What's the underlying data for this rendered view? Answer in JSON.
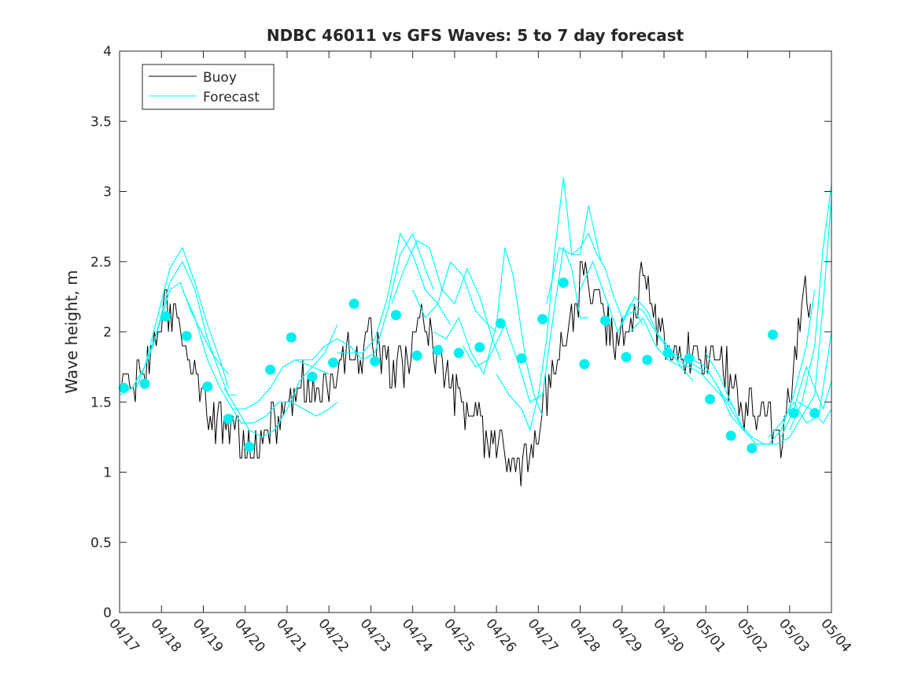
{
  "chart_data": {
    "type": "line",
    "title": "NDBC 46011 vs GFS Waves: 5 to 7 day forecast",
    "xlabel": "",
    "ylabel": "Wave height, m",
    "xlim": [
      0,
      17
    ],
    "ylim": [
      0,
      4
    ],
    "x_tick_labels": [
      "04/17",
      "04/18",
      "04/19",
      "04/20",
      "04/21",
      "04/22",
      "04/23",
      "04/24",
      "04/25",
      "04/26",
      "04/27",
      "04/28",
      "04/29",
      "04/30",
      "05/01",
      "05/02",
      "05/03",
      "05/04"
    ],
    "y_ticks": [
      0,
      0.5,
      1,
      1.5,
      2,
      2.5,
      3,
      3.5,
      4
    ],
    "y_tick_labels": [
      "0",
      "0.5",
      "1",
      "1.5",
      "2",
      "2.5",
      "3",
      "3.5",
      "4"
    ],
    "legend": {
      "position": "top-left",
      "entries": [
        {
          "label": "Buoy",
          "color": "#000000"
        },
        {
          "label": "Forecast",
          "color": "#00ffff"
        }
      ]
    },
    "colors": {
      "buoy": "#000000",
      "forecast": "#00ffff",
      "markers": "#00f0f0"
    },
    "buoy_anchors": [
      [
        0.0,
        1.6
      ],
      [
        0.2,
        1.6
      ],
      [
        0.4,
        1.65
      ],
      [
        0.6,
        1.7
      ],
      [
        0.8,
        1.9
      ],
      [
        0.95,
        2.1
      ],
      [
        1.1,
        2.2
      ],
      [
        1.25,
        2.15
      ],
      [
        1.4,
        2.05
      ],
      [
        1.55,
        1.95
      ],
      [
        1.7,
        1.8
      ],
      [
        1.85,
        1.6
      ],
      [
        2.0,
        1.55
      ],
      [
        2.15,
        1.4
      ],
      [
        2.3,
        1.35
      ],
      [
        2.5,
        1.3
      ],
      [
        2.7,
        1.3
      ],
      [
        2.9,
        1.2
      ],
      [
        3.1,
        1.15
      ],
      [
        3.3,
        1.2
      ],
      [
        3.5,
        1.3
      ],
      [
        3.7,
        1.35
      ],
      [
        3.9,
        1.4
      ],
      [
        4.1,
        1.5
      ],
      [
        4.3,
        1.6
      ],
      [
        4.5,
        1.6
      ],
      [
        4.7,
        1.55
      ],
      [
        4.9,
        1.6
      ],
      [
        5.1,
        1.7
      ],
      [
        5.3,
        1.8
      ],
      [
        5.5,
        1.85
      ],
      [
        5.7,
        1.8
      ],
      [
        5.9,
        1.85
      ],
      [
        6.0,
        2.0
      ],
      [
        6.15,
        1.9
      ],
      [
        6.3,
        1.75
      ],
      [
        6.5,
        1.7
      ],
      [
        6.7,
        1.75
      ],
      [
        6.9,
        1.85
      ],
      [
        7.0,
        1.95
      ],
      [
        7.2,
        2.05
      ],
      [
        7.4,
        2.0
      ],
      [
        7.55,
        1.85
      ],
      [
        7.7,
        1.75
      ],
      [
        7.85,
        1.65
      ],
      [
        8.0,
        1.55
      ],
      [
        8.2,
        1.45
      ],
      [
        8.4,
        1.4
      ],
      [
        8.6,
        1.3
      ],
      [
        8.8,
        1.25
      ],
      [
        9.0,
        1.15
      ],
      [
        9.2,
        1.1
      ],
      [
        9.4,
        1.05
      ],
      [
        9.6,
        1.05
      ],
      [
        9.8,
        1.1
      ],
      [
        10.0,
        1.3
      ],
      [
        10.2,
        1.55
      ],
      [
        10.4,
        1.8
      ],
      [
        10.6,
        2.0
      ],
      [
        10.8,
        2.05
      ],
      [
        11.0,
        2.3
      ],
      [
        11.15,
        2.5
      ],
      [
        11.3,
        2.3
      ],
      [
        11.5,
        2.1
      ],
      [
        11.7,
        2.0
      ],
      [
        11.9,
        1.95
      ],
      [
        12.1,
        2.05
      ],
      [
        12.3,
        2.2
      ],
      [
        12.5,
        2.45
      ],
      [
        12.7,
        2.2
      ],
      [
        12.9,
        2.0
      ],
      [
        13.1,
        1.85
      ],
      [
        13.3,
        1.8
      ],
      [
        13.5,
        1.85
      ],
      [
        13.7,
        1.9
      ],
      [
        13.9,
        1.85
      ],
      [
        14.1,
        1.8
      ],
      [
        14.3,
        1.75
      ],
      [
        14.5,
        1.7
      ],
      [
        14.7,
        1.6
      ],
      [
        14.9,
        1.5
      ],
      [
        15.1,
        1.45
      ],
      [
        15.3,
        1.4
      ],
      [
        15.5,
        1.35
      ],
      [
        15.7,
        1.25
      ],
      [
        15.9,
        1.3
      ],
      [
        16.0,
        1.6
      ],
      [
        16.2,
        2.0
      ],
      [
        16.35,
        2.3
      ],
      [
        16.5,
        2.2
      ]
    ],
    "forecast_lines": [
      [
        [
          0.0,
          1.55
        ],
        [
          0.3,
          1.6
        ],
        [
          0.6,
          1.75
        ],
        [
          0.9,
          2.0
        ],
        [
          1.2,
          2.3
        ],
        [
          1.45,
          2.35
        ],
        [
          1.7,
          2.15
        ],
        [
          1.95,
          2.0
        ],
        [
          2.2,
          1.85
        ],
        [
          2.45,
          1.75
        ],
        [
          2.6,
          1.7
        ]
      ],
      [
        [
          0.3,
          1.6
        ],
        [
          0.6,
          1.75
        ],
        [
          0.9,
          2.1
        ],
        [
          1.2,
          2.45
        ],
        [
          1.5,
          2.6
        ],
        [
          1.8,
          2.35
        ],
        [
          2.1,
          2.05
        ],
        [
          2.4,
          1.8
        ],
        [
          2.6,
          1.6
        ]
      ],
      [
        [
          0.4,
          1.6
        ],
        [
          0.8,
          1.9
        ],
        [
          1.2,
          2.35
        ],
        [
          1.5,
          2.5
        ],
        [
          1.8,
          2.3
        ],
        [
          2.1,
          1.95
        ],
        [
          2.4,
          1.7
        ],
        [
          2.6,
          1.55
        ],
        [
          2.8,
          1.55
        ]
      ],
      [
        [
          1.5,
          2.3
        ],
        [
          1.8,
          2.1
        ],
        [
          2.1,
          1.8
        ],
        [
          2.4,
          1.6
        ],
        [
          2.7,
          1.45
        ],
        [
          3.0,
          1.45
        ],
        [
          3.3,
          1.5
        ],
        [
          3.6,
          1.6
        ],
        [
          3.9,
          1.75
        ],
        [
          4.2,
          1.8
        ],
        [
          4.6,
          1.75
        ],
        [
          5.0,
          1.7
        ]
      ],
      [
        [
          2.5,
          1.6
        ],
        [
          2.8,
          1.45
        ],
        [
          3.1,
          1.3
        ],
        [
          3.4,
          1.25
        ],
        [
          3.7,
          1.3
        ],
        [
          4.0,
          1.45
        ],
        [
          4.3,
          1.65
        ],
        [
          4.6,
          1.75
        ],
        [
          4.9,
          1.85
        ],
        [
          5.2,
          2.05
        ]
      ],
      [
        [
          2.6,
          1.5
        ],
        [
          2.9,
          1.35
        ],
        [
          3.2,
          1.35
        ],
        [
          3.5,
          1.4
        ],
        [
          3.8,
          1.5
        ],
        [
          4.1,
          1.5
        ],
        [
          4.4,
          1.45
        ],
        [
          4.7,
          1.4
        ],
        [
          5.0,
          1.45
        ],
        [
          5.2,
          1.5
        ]
      ],
      [
        [
          4.2,
          1.8
        ],
        [
          4.6,
          1.8
        ],
        [
          4.9,
          1.9
        ],
        [
          5.2,
          1.95
        ],
        [
          5.5,
          1.9
        ],
        [
          5.8,
          1.8
        ],
        [
          6.1,
          1.85
        ],
        [
          6.4,
          2.15
        ],
        [
          6.7,
          2.55
        ],
        [
          7.0,
          2.7
        ],
        [
          7.3,
          2.45
        ],
        [
          7.5,
          2.3
        ]
      ],
      [
        [
          5.2,
          1.85
        ],
        [
          5.5,
          1.85
        ],
        [
          5.8,
          1.85
        ],
        [
          6.1,
          1.95
        ],
        [
          6.4,
          2.25
        ],
        [
          6.7,
          2.7
        ],
        [
          7.0,
          2.55
        ],
        [
          7.3,
          2.3
        ],
        [
          7.6,
          2.2
        ],
        [
          7.9,
          2.05
        ]
      ],
      [
        [
          6.5,
          2.2
        ],
        [
          6.8,
          2.45
        ],
        [
          7.1,
          2.65
        ],
        [
          7.4,
          2.6
        ],
        [
          7.7,
          2.3
        ],
        [
          8.0,
          2.2
        ],
        [
          8.3,
          2.45
        ],
        [
          8.6,
          2.25
        ],
        [
          8.9,
          1.95
        ],
        [
          9.1,
          1.8
        ]
      ],
      [
        [
          7.0,
          2.3
        ],
        [
          7.3,
          2.1
        ],
        [
          7.6,
          2.2
        ],
        [
          7.9,
          2.5
        ],
        [
          8.2,
          2.4
        ],
        [
          8.5,
          2.15
        ],
        [
          8.8,
          2.05
        ],
        [
          9.0,
          2.0
        ]
      ],
      [
        [
          7.5,
          2.0
        ],
        [
          7.8,
          1.95
        ],
        [
          8.1,
          2.1
        ],
        [
          8.4,
          1.85
        ],
        [
          8.7,
          1.7
        ],
        [
          9.0,
          2.05
        ],
        [
          9.2,
          2.6
        ],
        [
          9.4,
          2.4
        ],
        [
          9.7,
          1.8
        ],
        [
          9.9,
          1.55
        ],
        [
          10.1,
          1.4
        ]
      ],
      [
        [
          8.2,
          1.9
        ],
        [
          8.5,
          1.75
        ],
        [
          8.8,
          1.8
        ],
        [
          9.2,
          2.05
        ],
        [
          9.5,
          1.8
        ],
        [
          9.8,
          1.5
        ],
        [
          10.1,
          1.55
        ],
        [
          10.4,
          2.2
        ],
        [
          10.6,
          2.6
        ],
        [
          10.8,
          2.45
        ],
        [
          11.0,
          2.1
        ],
        [
          11.2,
          2.1
        ]
      ],
      [
        [
          9.0,
          1.7
        ],
        [
          9.3,
          1.55
        ],
        [
          9.6,
          1.45
        ],
        [
          9.8,
          1.3
        ],
        [
          10.0,
          1.55
        ],
        [
          10.2,
          1.95
        ],
        [
          10.4,
          2.6
        ],
        [
          10.6,
          3.1
        ],
        [
          10.8,
          2.55
        ],
        [
          11.0,
          2.55
        ],
        [
          11.2,
          2.9
        ],
        [
          11.5,
          2.5
        ]
      ],
      [
        [
          10.2,
          2.2
        ],
        [
          10.5,
          2.6
        ],
        [
          10.8,
          2.55
        ],
        [
          11.0,
          2.6
        ],
        [
          11.2,
          2.7
        ],
        [
          11.4,
          2.55
        ],
        [
          11.6,
          2.45
        ],
        [
          11.8,
          2.25
        ],
        [
          12.0,
          2.1
        ],
        [
          12.3,
          2.15
        ],
        [
          12.5,
          2.05
        ]
      ],
      [
        [
          11.0,
          2.3
        ],
        [
          11.3,
          2.5
        ],
        [
          11.6,
          2.25
        ],
        [
          11.9,
          2.0
        ],
        [
          12.2,
          2.2
        ],
        [
          12.5,
          2.15
        ],
        [
          12.8,
          2.0
        ],
        [
          13.1,
          1.9
        ],
        [
          13.4,
          1.75
        ],
        [
          13.7,
          1.65
        ]
      ],
      [
        [
          12.0,
          2.05
        ],
        [
          12.3,
          2.25
        ],
        [
          12.6,
          2.15
        ],
        [
          12.9,
          1.95
        ],
        [
          13.2,
          1.85
        ],
        [
          13.5,
          1.8
        ],
        [
          13.8,
          1.75
        ],
        [
          14.1,
          1.7
        ],
        [
          14.4,
          1.55
        ],
        [
          14.7,
          1.45
        ]
      ],
      [
        [
          12.2,
          2.0
        ],
        [
          12.5,
          2.1
        ],
        [
          12.8,
          1.9
        ],
        [
          13.1,
          1.8
        ],
        [
          13.4,
          1.75
        ],
        [
          13.7,
          1.8
        ],
        [
          14.0,
          1.75
        ],
        [
          14.3,
          1.6
        ],
        [
          14.6,
          1.4
        ],
        [
          14.9,
          1.3
        ],
        [
          15.2,
          1.2
        ],
        [
          15.6,
          1.2
        ]
      ],
      [
        [
          13.0,
          1.9
        ],
        [
          13.3,
          1.8
        ],
        [
          13.6,
          1.75
        ],
        [
          13.9,
          1.7
        ],
        [
          14.2,
          1.6
        ],
        [
          14.5,
          1.5
        ],
        [
          14.8,
          1.35
        ],
        [
          15.1,
          1.25
        ],
        [
          15.4,
          1.2
        ],
        [
          15.7,
          1.2
        ],
        [
          16.0,
          1.25
        ],
        [
          16.3,
          1.4
        ]
      ],
      [
        [
          14.0,
          1.85
        ],
        [
          14.3,
          1.7
        ],
        [
          14.6,
          1.5
        ],
        [
          14.9,
          1.3
        ],
        [
          15.2,
          1.2
        ],
        [
          15.5,
          1.2
        ],
        [
          15.8,
          1.3
        ],
        [
          16.1,
          1.55
        ],
        [
          16.4,
          1.9
        ],
        [
          16.6,
          2.3
        ]
      ],
      [
        [
          15.5,
          1.25
        ],
        [
          15.8,
          1.35
        ],
        [
          16.1,
          1.5
        ],
        [
          16.4,
          1.35
        ],
        [
          16.7,
          1.4
        ],
        [
          16.9,
          1.8
        ],
        [
          17.0,
          2.0
        ]
      ],
      [
        [
          15.8,
          1.25
        ],
        [
          16.1,
          1.45
        ],
        [
          16.4,
          1.75
        ],
        [
          16.6,
          1.6
        ],
        [
          16.8,
          1.45
        ],
        [
          17.0,
          1.65
        ]
      ],
      [
        [
          16.2,
          1.5
        ],
        [
          16.5,
          1.45
        ],
        [
          16.8,
          1.35
        ],
        [
          17.0,
          1.45
        ]
      ],
      [
        [
          16.0,
          1.3
        ],
        [
          16.3,
          1.5
        ],
        [
          16.6,
          1.9
        ],
        [
          16.8,
          2.6
        ],
        [
          17.0,
          3.05
        ]
      ],
      [
        [
          16.3,
          1.4
        ],
        [
          16.6,
          1.55
        ],
        [
          16.8,
          2.2
        ],
        [
          17.0,
          2.95
        ]
      ]
    ],
    "forecast_points": {
      "x": [
        0.1,
        0.6,
        1.1,
        1.6,
        2.1,
        2.6,
        3.1,
        3.6,
        4.1,
        4.6,
        5.1,
        5.6,
        6.1,
        6.6,
        7.1,
        7.6,
        8.1,
        8.6,
        9.1,
        9.6,
        10.1,
        10.6,
        11.1,
        11.6,
        12.1,
        12.6,
        13.1,
        13.6,
        14.1,
        14.6,
        15.1,
        15.6,
        16.1,
        16.6
      ],
      "y": [
        1.6,
        1.63,
        2.11,
        1.97,
        1.61,
        1.38,
        1.18,
        1.73,
        1.96,
        1.68,
        1.78,
        2.2,
        1.79,
        2.12,
        1.83,
        1.87,
        1.85,
        1.89,
        2.06,
        1.81,
        2.09,
        2.35,
        1.77,
        2.08,
        1.82,
        1.8,
        1.85,
        1.81,
        1.52,
        1.26,
        1.17,
        1.98,
        1.42,
        1.42
      ]
    }
  }
}
